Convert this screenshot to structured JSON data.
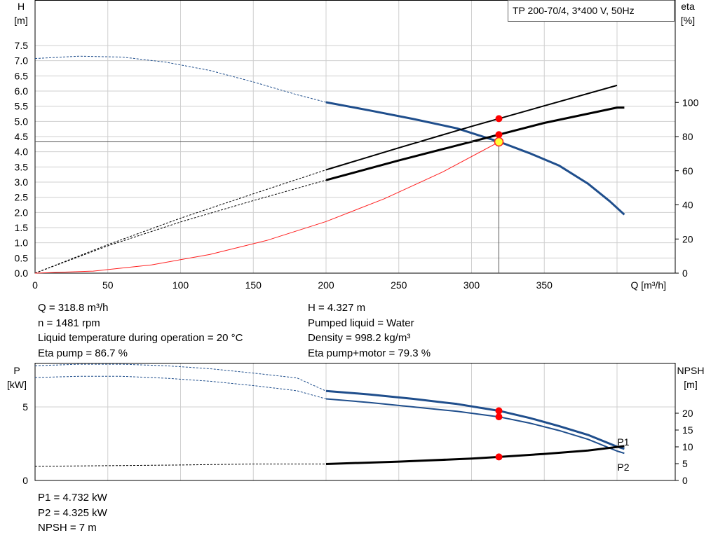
{
  "chart_data": [
    {
      "type": "line",
      "title": "TP 200-70/4, 3*400 V, 50Hz",
      "xlabel": "Q [m³/h]",
      "ylabel": "H",
      "ylabel_unit": "[m]",
      "y2label": "eta",
      "y2label_unit": "[%]",
      "xlim": [
        0,
        440
      ],
      "ylim": [
        0,
        9
      ],
      "y2lim": [
        0,
        160
      ],
      "xticks": [
        "0",
        "50",
        "100",
        "150",
        "200",
        "250",
        "300",
        "350"
      ],
      "yticks": [
        "0.0",
        "0.5",
        "1.0",
        "1.5",
        "2.0",
        "2.5",
        "3.0",
        "3.5",
        "4.0",
        "4.5",
        "5.0",
        "5.5",
        "6.0",
        "6.5",
        "7.0",
        "7.5"
      ],
      "y2ticks": [
        "0",
        "20",
        "40",
        "60",
        "80",
        "100"
      ],
      "grid": true,
      "series": [
        {
          "id": "H",
          "axis": "left",
          "color": "#1f4e8c",
          "solid_from": 200,
          "x": [
            0,
            30,
            60,
            90,
            120,
            150,
            180,
            200,
            230,
            260,
            290,
            319,
            340,
            360,
            380,
            395,
            405
          ],
          "y": [
            7.07,
            7.15,
            7.12,
            6.95,
            6.68,
            6.3,
            5.88,
            5.63,
            5.36,
            5.08,
            4.77,
            4.33,
            3.95,
            3.55,
            2.95,
            2.37,
            1.93
          ]
        },
        {
          "id": "eta-pump",
          "axis": "right",
          "color": "#000000",
          "solid_from": 200,
          "x": [
            0,
            50,
            100,
            150,
            200,
            250,
            300,
            350,
            400
          ],
          "y": [
            0,
            16.7,
            32.2,
            46.5,
            60.5,
            73.4,
            86,
            98,
            110
          ]
        },
        {
          "id": "eta-pump-motor",
          "axis": "right",
          "color": "#000000",
          "solid_from": 200,
          "x": [
            0,
            50,
            100,
            150,
            200,
            250,
            300,
            350,
            400,
            405
          ],
          "y": [
            0,
            16,
            30,
            42.5,
            54.5,
            66,
            77,
            88,
            97,
            97
          ]
        },
        {
          "id": "system-curve",
          "axis": "left",
          "color": "#ff2020",
          "solid_from": 0,
          "x": [
            0,
            40,
            80,
            120,
            160,
            200,
            240,
            280,
            319
          ],
          "y": [
            0,
            0.068,
            0.272,
            0.613,
            1.09,
            1.7,
            2.45,
            3.33,
            4.327
          ]
        }
      ],
      "annotations": [
        {
          "id": "duty-point",
          "x": 318.8,
          "y": 4.327
        }
      ]
    },
    {
      "type": "line",
      "xlim": [
        0,
        440
      ],
      "ylim": [
        0,
        8
      ],
      "y2lim": [
        0,
        35
      ],
      "ylabel": "P",
      "ylabel_unit": "[kW]",
      "y2label": "NPSH",
      "y2label_unit": "[m]",
      "yticks": [
        "0",
        "5"
      ],
      "y2ticks": [
        "0",
        "5",
        "10",
        "15",
        "20"
      ],
      "grid": true,
      "series": [
        {
          "id": "P1",
          "name": "P1",
          "axis": "left",
          "color": "#1f4e8c",
          "solid_from": 200,
          "x": [
            0,
            30,
            60,
            90,
            120,
            150,
            180,
            200,
            230,
            260,
            290,
            319,
            340,
            360,
            380,
            400,
            405
          ],
          "y": [
            7.8,
            7.9,
            7.9,
            7.8,
            7.6,
            7.3,
            6.97,
            6.08,
            5.85,
            5.55,
            5.2,
            4.732,
            4.25,
            3.7,
            3.1,
            2.3,
            2.15
          ]
        },
        {
          "id": "P2",
          "name": "P2",
          "axis": "left",
          "color": "#1f4e8c",
          "solid_from": 200,
          "x": [
            0,
            30,
            60,
            90,
            120,
            150,
            180,
            200,
            230,
            260,
            290,
            319,
            340,
            360,
            380,
            400,
            405
          ],
          "y": [
            7.0,
            7.08,
            7.08,
            6.95,
            6.75,
            6.45,
            6.1,
            5.55,
            5.3,
            5.0,
            4.7,
            4.325,
            3.9,
            3.4,
            2.8,
            2.0,
            1.85
          ]
        },
        {
          "id": "NPSH",
          "axis": "right",
          "color": "#000000",
          "solid_from": 200,
          "x": [
            0,
            50,
            100,
            150,
            200,
            250,
            300,
            319,
            350,
            380,
            405
          ],
          "y": [
            4.2,
            4.4,
            4.6,
            4.9,
            4.9,
            5.6,
            6.5,
            7.0,
            7.9,
            8.9,
            10.2
          ]
        }
      ],
      "annotations": [
        {
          "id": "duty-point",
          "x": 318.8
        }
      ]
    }
  ],
  "info": {
    "q": "Q = 318.8 m³/h",
    "n": "n = 1481 rpm",
    "liquid_temp": "Liquid temperature during operation = 20 °C",
    "eta_pump": "Eta pump = 86.7 %",
    "h": "H = 4.327 m",
    "pumped_liquid": "Pumped liquid = Water",
    "density": "Density = 998.2 kg/m³",
    "eta_pump_motor": "Eta pump+motor = 79.3 %",
    "p1": "P1 = 4.732 kW",
    "p2": "P2 = 4.325 kW",
    "npsh": "NPSH = 7 m"
  },
  "colors": {
    "grid": "#cfcfcf",
    "duty_marker_fill": "#ffff33",
    "duty_marker_stroke": "#ff2020",
    "point_marker": "#ff0000"
  }
}
